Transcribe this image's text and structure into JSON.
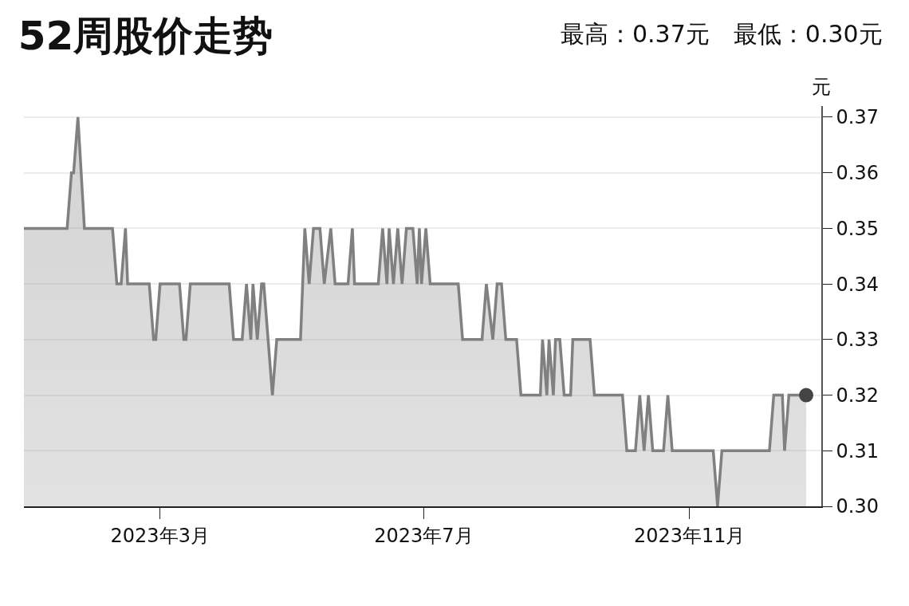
{
  "chart_data": {
    "type": "area",
    "title": "52周股价走势",
    "subtitle": "最高：0.37元　最低：0.30元",
    "ylabel": "元",
    "xlim": [
      "2022-12-28",
      "2024-01-01"
    ],
    "xticks": [
      {
        "value": "2023-03-01",
        "label": "2023年3月"
      },
      {
        "value": "2023-07-01",
        "label": "2023年7月"
      },
      {
        "value": "2023-11-01",
        "label": "2023年11月"
      }
    ],
    "ylim": [
      0.3,
      0.372
    ],
    "yticks": [
      {
        "value": 0.3,
        "label": "0.30"
      },
      0.31,
      0.32,
      0.33,
      0.34,
      0.35,
      0.36,
      0.37
    ],
    "grid": "y",
    "marker": "none",
    "line_style": "solid",
    "series": [
      {
        "color": "#808080",
        "x": [
          "2022-12-28",
          "2023-01-17",
          "2023-01-19",
          "2023-01-20",
          "2023-01-22",
          "2023-01-25",
          "2023-02-07",
          "2023-02-09",
          "2023-02-11",
          "2023-02-13",
          "2023-02-14",
          "2023-02-24",
          "2023-02-26",
          "2023-02-27",
          "2023-03-01",
          "2023-03-10",
          "2023-03-12",
          "2023-03-13",
          "2023-03-15",
          "2023-04-02",
          "2023-04-04",
          "2023-04-08",
          "2023-04-10",
          "2023-04-12",
          "2023-04-13",
          "2023-04-15",
          "2023-04-17",
          "2023-04-18",
          "2023-04-22",
          "2023-04-24",
          "2023-05-05",
          "2023-05-07",
          "2023-05-09",
          "2023-05-11",
          "2023-05-14",
          "2023-05-16",
          "2023-05-19",
          "2023-05-21",
          "2023-05-27",
          "2023-05-29",
          "2023-05-30",
          "2023-06-10",
          "2023-06-12",
          "2023-06-14",
          "2023-06-15",
          "2023-06-17",
          "2023-06-19",
          "2023-06-21",
          "2023-06-23",
          "2023-06-26",
          "2023-06-28",
          "2023-06-29",
          "2023-06-30",
          "2023-07-02",
          "2023-07-04",
          "2023-07-17",
          "2023-07-19",
          "2023-07-28",
          "2023-07-30",
          "2023-08-02",
          "2023-08-04",
          "2023-08-06",
          "2023-08-08",
          "2023-08-13",
          "2023-08-15",
          "2023-08-24",
          "2023-08-25",
          "2023-08-27",
          "2023-08-28",
          "2023-08-30",
          "2023-08-31",
          "2023-09-02",
          "2023-09-04",
          "2023-09-07",
          "2023-09-08",
          "2023-09-16",
          "2023-09-18",
          "2023-10-01",
          "2023-10-03",
          "2023-10-07",
          "2023-10-09",
          "2023-10-11",
          "2023-10-13",
          "2023-10-15",
          "2023-10-20",
          "2023-10-22",
          "2023-10-24",
          "2023-11-12",
          "2023-11-14",
          "2023-11-16",
          "2023-12-08",
          "2023-12-10",
          "2023-12-14",
          "2023-12-15",
          "2023-12-17",
          "2023-12-25"
        ],
        "values": [
          0.35,
          0.35,
          0.36,
          0.36,
          0.37,
          0.35,
          0.35,
          0.34,
          0.34,
          0.35,
          0.34,
          0.34,
          0.33,
          0.33,
          0.34,
          0.34,
          0.33,
          0.33,
          0.34,
          0.34,
          0.33,
          0.33,
          0.34,
          0.33,
          0.34,
          0.33,
          0.34,
          0.34,
          0.32,
          0.33,
          0.33,
          0.35,
          0.34,
          0.35,
          0.35,
          0.34,
          0.35,
          0.34,
          0.34,
          0.35,
          0.34,
          0.34,
          0.35,
          0.34,
          0.35,
          0.34,
          0.35,
          0.34,
          0.35,
          0.35,
          0.34,
          0.35,
          0.34,
          0.35,
          0.34,
          0.34,
          0.33,
          0.33,
          0.34,
          0.33,
          0.34,
          0.34,
          0.33,
          0.33,
          0.32,
          0.32,
          0.33,
          0.32,
          0.33,
          0.32,
          0.33,
          0.33,
          0.32,
          0.32,
          0.33,
          0.33,
          0.32,
          0.32,
          0.31,
          0.31,
          0.32,
          0.31,
          0.32,
          0.31,
          0.31,
          0.32,
          0.31,
          0.31,
          0.3,
          0.31,
          0.31,
          0.32,
          0.32,
          0.31,
          0.32,
          0.32
        ]
      },
      {
        "type": "scatter",
        "marker": "circle",
        "color": "#444444",
        "x": [
          "2023-12-25"
        ],
        "values": [
          0.32
        ]
      }
    ]
  }
}
